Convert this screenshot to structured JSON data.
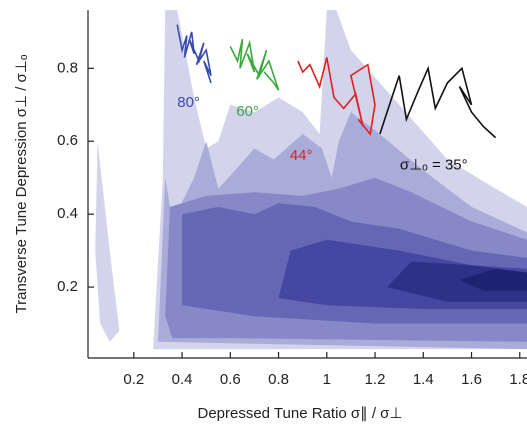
{
  "chart_data": {
    "type": "contour",
    "x_label": "Depressed Tune Ratio σ∥ / σ⊥",
    "y_label": "Transverse Tune Depression σ⊥ / σ⊥ₒ",
    "xlim": [
      0.01,
      1.83
    ],
    "ylim": [
      0,
      0.96
    ],
    "xticks": [
      0.2,
      0.4,
      0.6,
      0.8,
      1.0,
      1.2,
      1.4,
      1.6,
      1.8
    ],
    "yticks": [
      0.2,
      0.4,
      0.6,
      0.8
    ],
    "contours": [
      {
        "color": "#d3d4ec",
        "x": [
          0.05,
          0.1,
          0.14,
          0.1,
          0.06,
          0.04
        ],
        "y": [
          0.6,
          0.3,
          0.08,
          0.05,
          0.1,
          0.3
        ]
      },
      {
        "color": "#d3d4ec",
        "x": [
          0.28,
          0.32,
          0.33,
          0.38,
          0.45,
          0.5,
          0.55,
          0.6,
          0.7,
          0.8,
          0.9,
          0.97,
          1.0,
          1.04,
          1.1,
          1.3,
          1.5,
          1.7,
          1.83,
          1.83
        ],
        "y": [
          0.03,
          0.5,
          0.96,
          0.96,
          0.72,
          0.58,
          0.6,
          0.7,
          0.68,
          0.72,
          0.68,
          0.62,
          0.96,
          0.96,
          0.85,
          0.7,
          0.55,
          0.47,
          0.42,
          0.03
        ]
      },
      {
        "color": "#a9abd8",
        "x": [
          0.3,
          0.33,
          0.36,
          0.45,
          0.5,
          0.55,
          0.62,
          0.7,
          0.78,
          0.9,
          0.98,
          1.02,
          1.05,
          1.1,
          1.2,
          1.4,
          1.6,
          1.83,
          1.83
        ],
        "y": [
          0.05,
          0.5,
          0.38,
          0.5,
          0.6,
          0.47,
          0.52,
          0.58,
          0.55,
          0.62,
          0.58,
          0.5,
          0.6,
          0.68,
          0.63,
          0.52,
          0.42,
          0.35,
          0.03
        ]
      },
      {
        "color": "#8688c7",
        "x": [
          0.33,
          0.35,
          0.5,
          0.7,
          0.9,
          1.05,
          1.2,
          1.35,
          1.6,
          1.83,
          1.83,
          0.6,
          0.36
        ],
        "y": [
          0.12,
          0.42,
          0.45,
          0.46,
          0.45,
          0.47,
          0.5,
          0.46,
          0.38,
          0.33,
          0.05,
          0.06,
          0.06
        ]
      },
      {
        "color": "#6567b5",
        "x": [
          0.4,
          0.4,
          0.55,
          0.7,
          0.8,
          0.95,
          1.1,
          1.3,
          1.6,
          1.83,
          1.83,
          1.2,
          0.7
        ],
        "y": [
          0.15,
          0.4,
          0.42,
          0.4,
          0.43,
          0.42,
          0.38,
          0.36,
          0.3,
          0.28,
          0.1,
          0.1,
          0.12
        ]
      },
      {
        "color": "#4547a0",
        "x": [
          0.8,
          0.85,
          1.0,
          1.3,
          1.6,
          1.83,
          1.83,
          1.4,
          1.0
        ],
        "y": [
          0.17,
          0.3,
          0.33,
          0.3,
          0.26,
          0.25,
          0.14,
          0.14,
          0.15
        ]
      },
      {
        "color": "#2e3187",
        "x": [
          1.25,
          1.35,
          1.6,
          1.83,
          1.83,
          1.5
        ],
        "y": [
          0.2,
          0.27,
          0.26,
          0.24,
          0.16,
          0.16
        ]
      },
      {
        "color": "#1f2270",
        "x": [
          1.55,
          1.7,
          1.83,
          1.83,
          1.65
        ],
        "y": [
          0.22,
          0.25,
          0.24,
          0.19,
          0.19
        ]
      }
    ],
    "series": [
      {
        "name": "80°",
        "color": "#3a4bb0",
        "x": [
          0.38,
          0.4,
          0.42,
          0.41,
          0.44,
          0.45,
          0.43,
          0.47,
          0.49,
          0.46,
          0.5,
          0.52,
          0.49,
          0.52
        ],
        "y": [
          0.92,
          0.85,
          0.89,
          0.83,
          0.9,
          0.84,
          0.88,
          0.82,
          0.87,
          0.81,
          0.85,
          0.78,
          0.82,
          0.76
        ]
      },
      {
        "name": "60°",
        "color": "#3aaa3a",
        "x": [
          0.6,
          0.63,
          0.65,
          0.64,
          0.68,
          0.7,
          0.67,
          0.72,
          0.75,
          0.71,
          0.76,
          0.8,
          0.78,
          0.74
        ],
        "y": [
          0.86,
          0.82,
          0.88,
          0.8,
          0.87,
          0.79,
          0.84,
          0.78,
          0.85,
          0.77,
          0.82,
          0.74,
          0.76,
          0.79
        ]
      },
      {
        "name": "44°",
        "color": "#e02020",
        "x": [
          0.88,
          0.9,
          0.93,
          0.97,
          1.0,
          1.03,
          1.07,
          1.12,
          1.15,
          1.1,
          1.17,
          1.2,
          1.18,
          1.13
        ],
        "y": [
          0.82,
          0.79,
          0.81,
          0.75,
          0.83,
          0.72,
          0.69,
          0.73,
          0.64,
          0.78,
          0.81,
          0.7,
          0.62,
          0.66
        ]
      },
      {
        "name": "σ⊥ₒ = 35°",
        "color": "#111111",
        "x": [
          1.22,
          1.27,
          1.3,
          1.33,
          1.38,
          1.42,
          1.45,
          1.5,
          1.56,
          1.6,
          1.55,
          1.6,
          1.65,
          1.7
        ],
        "y": [
          0.62,
          0.72,
          0.78,
          0.66,
          0.74,
          0.8,
          0.69,
          0.76,
          0.8,
          0.7,
          0.75,
          0.68,
          0.64,
          0.61
        ]
      }
    ]
  }
}
